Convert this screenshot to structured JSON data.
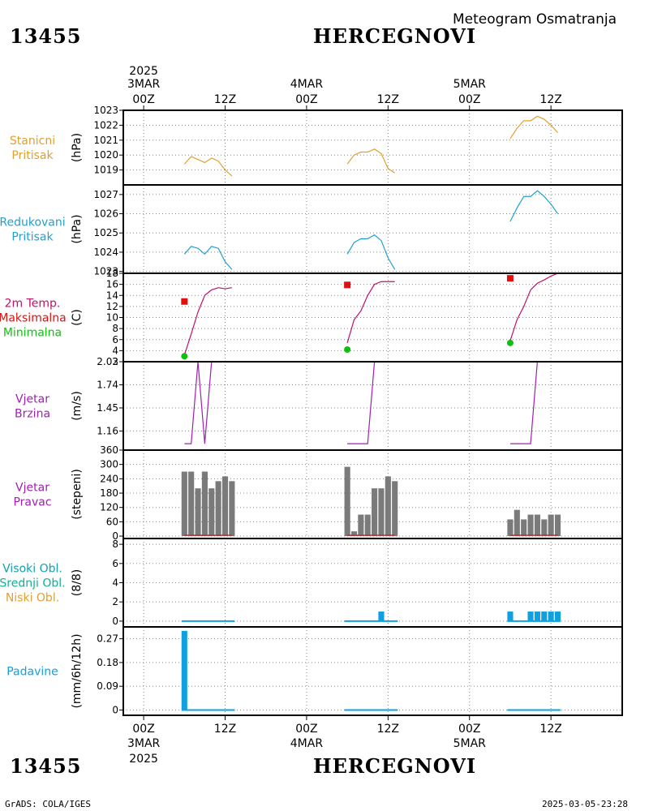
{
  "header": {
    "station_id": "13455",
    "station_name": "HERCEGNOVI",
    "meteogram_title": "Meteogram Osmatranja"
  },
  "footer": {
    "station_id": "13455",
    "station_name": "HERCEGNOVI",
    "credit": "GrADS: COLA/IGES",
    "timestamp": "2025-03-05-23:28"
  },
  "time_axis": {
    "top_year": "2025",
    "bottom_year": "2025",
    "ticks": [
      {
        "t": 0,
        "label": "00Z",
        "date": "3MAR"
      },
      {
        "t": 12,
        "label": "12Z",
        "date": ""
      },
      {
        "t": 24,
        "label": "00Z",
        "date": "4MAR"
      },
      {
        "t": 36,
        "label": "12Z",
        "date": ""
      },
      {
        "t": 48,
        "label": "00Z",
        "date": "5MAR"
      },
      {
        "t": 60,
        "label": "12Z",
        "date": ""
      }
    ],
    "t_range": [
      -3,
      70.5
    ]
  },
  "colors": {
    "orange": "#e0a030",
    "blue": "#20a0d0",
    "magenta": "#c0106a",
    "red": "#e01010",
    "green": "#10c010",
    "purple": "#a020b0",
    "teal": "#10a0b0",
    "cyan_green": "#10b090",
    "gray": "#7a7a7a",
    "bar_blue": "#10a0e0"
  },
  "chart_data": [
    {
      "type": "line",
      "panel": "station_pressure",
      "labels": [
        {
          "text": "Stanicni",
          "color": "#e0a030"
        },
        {
          "text": "Pritisak",
          "color": "#e0a030"
        }
      ],
      "ylabel": "(hPa)",
      "ylim": [
        1018.0,
        1023.0
      ],
      "yticks": [
        1019,
        1020,
        1021,
        1022,
        1023
      ],
      "series": [
        {
          "color": "#e0a030",
          "x": [
            6,
            7,
            8,
            9,
            10,
            11,
            12,
            13
          ],
          "y": [
            1019.4,
            1019.9,
            1019.7,
            1019.5,
            1019.8,
            1019.6,
            1019.0,
            1018.6
          ]
        },
        {
          "color": "#e0a030",
          "x": [
            30,
            31,
            32,
            33,
            34,
            35,
            36,
            37
          ],
          "y": [
            1019.4,
            1020.0,
            1020.2,
            1020.2,
            1020.4,
            1020.1,
            1019.1,
            1018.8
          ]
        },
        {
          "color": "#e0a030",
          "x": [
            54,
            55,
            56,
            57,
            58,
            59,
            60,
            61
          ],
          "y": [
            1021.1,
            1021.8,
            1022.3,
            1022.3,
            1022.6,
            1022.4,
            1022.0,
            1021.5
          ]
        }
      ]
    },
    {
      "type": "line",
      "panel": "reduced_pressure",
      "labels": [
        {
          "text": "Redukovani",
          "color": "#20a0d0"
        },
        {
          "text": "Pritisak",
          "color": "#20a0d0"
        }
      ],
      "ylabel": "(hPa)",
      "ylim": [
        1022.9,
        1027.5
      ],
      "yticks": [
        1023,
        1024,
        1025,
        1026,
        1027
      ],
      "series": [
        {
          "color": "#20a0d0",
          "x": [
            6,
            7,
            8,
            9,
            10,
            11,
            12,
            13
          ],
          "y": [
            1023.9,
            1024.3,
            1024.2,
            1023.9,
            1024.3,
            1024.2,
            1023.5,
            1023.1
          ]
        },
        {
          "color": "#20a0d0",
          "x": [
            30,
            31,
            32,
            33,
            34,
            35,
            36,
            37
          ],
          "y": [
            1023.9,
            1024.5,
            1024.7,
            1024.7,
            1024.9,
            1024.6,
            1023.7,
            1023.1
          ]
        },
        {
          "color": "#20a0d0",
          "x": [
            54,
            55,
            56,
            57,
            58,
            59,
            60,
            61
          ],
          "y": [
            1025.6,
            1026.3,
            1026.9,
            1026.9,
            1027.2,
            1026.9,
            1026.5,
            1026.0
          ]
        }
      ]
    },
    {
      "type": "line",
      "panel": "temperature",
      "labels": [
        {
          "text": "2m Temp.",
          "color": "#c0106a"
        },
        {
          "text": "Maksimalna",
          "color": "#e01010"
        },
        {
          "text": "Minimalna",
          "color": "#10c010"
        }
      ],
      "ylabel": "(C)",
      "ylim": [
        2.0,
        18.0
      ],
      "yticks": [
        2,
        4,
        6,
        8,
        10,
        12,
        14,
        16,
        18
      ],
      "series": [
        {
          "color": "#c0106a",
          "x": [
            6,
            7,
            8,
            9,
            10,
            11,
            12,
            13
          ],
          "y": [
            3.2,
            7.0,
            11.0,
            14.0,
            15.0,
            15.4,
            15.2,
            15.4
          ]
        },
        {
          "color": "#c0106a",
          "x": [
            30,
            31,
            32,
            33,
            34,
            35,
            36,
            37
          ],
          "y": [
            5.4,
            9.6,
            11.2,
            14.0,
            16.0,
            16.5,
            16.5,
            16.5
          ]
        },
        {
          "color": "#c0106a",
          "x": [
            54,
            55,
            56,
            57,
            58,
            59,
            60,
            61
          ],
          "y": [
            5.8,
            9.6,
            12.0,
            15.0,
            16.2,
            16.8,
            17.5,
            18.0
          ]
        }
      ],
      "max_points": {
        "color": "#e01010",
        "x": [
          6,
          30,
          54
        ],
        "y": [
          12.9,
          15.9,
          17.1
        ]
      },
      "min_points": {
        "color": "#10c010",
        "x": [
          6,
          30,
          54
        ],
        "y": [
          3.0,
          4.2,
          5.4
        ]
      }
    },
    {
      "type": "line",
      "panel": "wind_speed",
      "labels": [
        {
          "text": "Vjetar",
          "color": "#a020b0"
        },
        {
          "text": "Brzina",
          "color": "#a020b0"
        }
      ],
      "ylabel": "(m/s)",
      "ylim": [
        0.92,
        2.03
      ],
      "yticks": [
        1.16,
        1.45,
        1.74,
        2.03
      ],
      "ytick_labels": [
        "1.16",
        "1.45",
        "1.74",
        "2.03"
      ],
      "series": [
        {
          "color": "#a020b0",
          "x": [
            6,
            7,
            8,
            9,
            10,
            11,
            12,
            13
          ],
          "y": [
            1.0,
            1.0,
            2.03,
            1.0,
            2.03,
            2.03,
            2.03,
            2.03
          ]
        },
        {
          "color": "#a020b0",
          "x": [
            30,
            31,
            32,
            33,
            34,
            35,
            36,
            37
          ],
          "y": [
            1.0,
            1.0,
            1.0,
            1.0,
            2.03,
            2.03,
            2.03,
            2.03
          ]
        },
        {
          "color": "#a020b0",
          "x": [
            54,
            55,
            56,
            57,
            58,
            59,
            60,
            61
          ],
          "y": [
            1.0,
            1.0,
            1.0,
            1.0,
            2.03,
            2.03,
            2.03,
            2.03
          ]
        }
      ]
    },
    {
      "type": "bar",
      "panel": "wind_direction",
      "labels": [
        {
          "text": "Vjetar",
          "color": "#a020b0"
        },
        {
          "text": "Pravac",
          "color": "#a020b0"
        }
      ],
      "ylabel": "(stepeni)",
      "ylim": [
        -10,
        360
      ],
      "yticks": [
        0,
        60,
        120,
        180,
        240,
        300,
        360
      ],
      "bar_color": "#7a7a7a",
      "baseline_color": "#c03030",
      "x": [
        6,
        7,
        8,
        9,
        10,
        11,
        12,
        13,
        30,
        31,
        32,
        33,
        34,
        35,
        36,
        37,
        54,
        55,
        56,
        57,
        58,
        59,
        60,
        61
      ],
      "values": [
        270,
        270,
        200,
        270,
        200,
        230,
        250,
        230,
        290,
        20,
        90,
        90,
        200,
        200,
        250,
        230,
        70,
        110,
        70,
        90,
        90,
        70,
        90,
        90
      ]
    },
    {
      "type": "bar",
      "panel": "clouds",
      "labels": [
        {
          "text": "Visoki Obl.",
          "color": "#10a0b0"
        },
        {
          "text": "Srednji Obl.",
          "color": "#10b090"
        },
        {
          "text": "Niski Obl.",
          "color": "#e0a030"
        }
      ],
      "ylabel": "(8/8)",
      "ylim": [
        -0.6,
        8.6
      ],
      "yticks": [
        0,
        2,
        4,
        6,
        8
      ],
      "bar_color": "#10a0e0",
      "x": [
        35,
        54,
        57,
        58,
        59,
        60,
        61
      ],
      "values": [
        1,
        1,
        1,
        1,
        1,
        1,
        1
      ],
      "zero_ranges": [
        [
          6,
          13
        ],
        [
          30,
          37
        ],
        [
          54,
          61
        ]
      ]
    },
    {
      "type": "bar",
      "panel": "precipitation",
      "labels": [
        {
          "text": "Padavine",
          "color": "#10a0e0"
        }
      ],
      "ylabel": "(mm/6h/12h)",
      "ylim": [
        -0.02,
        0.315
      ],
      "yticks": [
        0,
        0.09,
        0.18,
        0.27
      ],
      "ytick_labels": [
        "0",
        "0.09",
        "0.18",
        "0.27"
      ],
      "bar_color": "#10a0e0",
      "x": [
        6
      ],
      "values": [
        0.3
      ],
      "zero_ranges": [
        [
          6,
          13
        ],
        [
          30,
          37
        ],
        [
          54,
          61
        ]
      ]
    }
  ]
}
